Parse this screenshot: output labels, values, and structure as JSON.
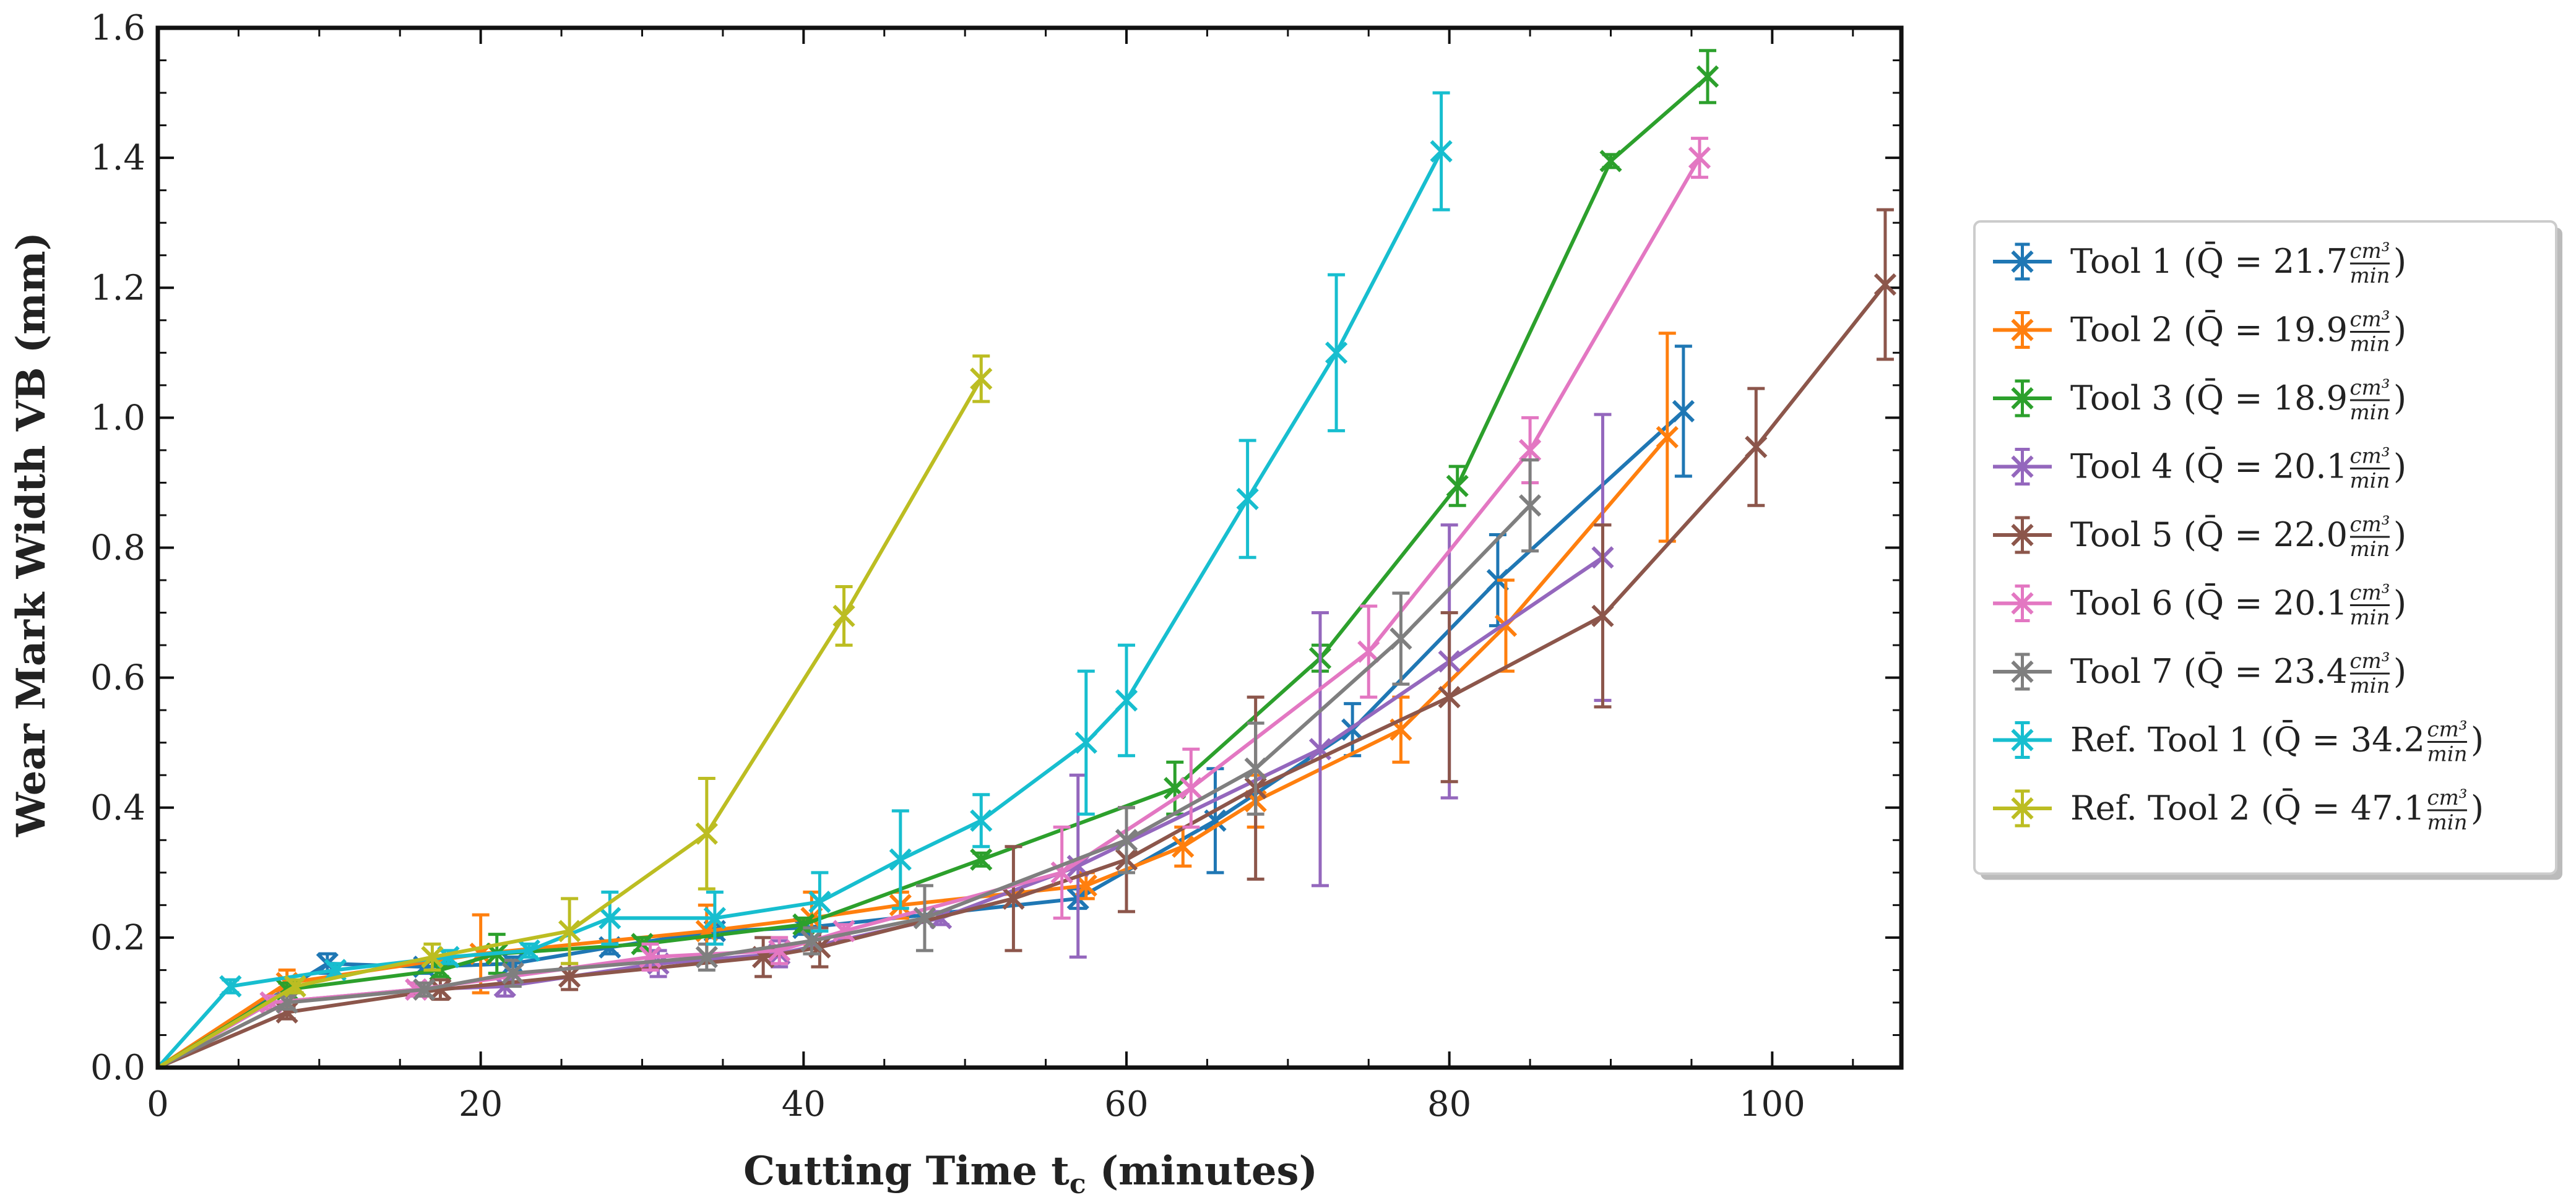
{
  "chart_data": {
    "type": "line",
    "title": "",
    "xlabel_main": "Cutting Time t",
    "xlabel_sub": "c",
    "xlabel_end": "(minutes)",
    "ylabel": "Wear Mark Width VB (mm)",
    "xlim": [
      0,
      108
    ],
    "ylim": [
      0,
      1.6
    ],
    "xticks": [
      0,
      20,
      40,
      60,
      80,
      100
    ],
    "xtick_labels": [
      "0",
      "20",
      "40",
      "60",
      "80",
      "100"
    ],
    "yticks": [
      0,
      0.2,
      0.4,
      0.6,
      0.8,
      1.0,
      1.2,
      1.4,
      1.6
    ],
    "ytick_labels": [
      "0.0",
      "0.2",
      "0.4",
      "0.6",
      "0.8",
      "1.0",
      "1.2",
      "1.4",
      "1.6"
    ],
    "legend_position": "right",
    "legend_unit_num": "cm³",
    "legend_unit_den": "min",
    "series": [
      {
        "name": "Tool 1",
        "label_main": "Tool 1 (Q̄ = 21.7",
        "color": "#1f77b4",
        "points": [
          [
            0,
            0,
            0
          ],
          [
            10.5,
            0.16,
            0.015
          ],
          [
            16.5,
            0.155,
            0.01
          ],
          [
            22,
            0.16,
            0.01
          ],
          [
            28,
            0.185,
            0.01
          ],
          [
            34.5,
            0.21,
            0.01
          ],
          [
            40,
            0.215,
            0.01
          ],
          [
            57,
            0.26,
            0.015
          ],
          [
            65.5,
            0.38,
            0.08
          ],
          [
            74,
            0.52,
            0.04
          ],
          [
            83,
            0.75,
            0.07
          ],
          [
            94.5,
            1.01,
            0.1
          ]
        ]
      },
      {
        "name": "Tool 2",
        "label_main": "Tool 2 (Q̄ = 19.9",
        "color": "#ff7f0e",
        "points": [
          [
            0,
            0,
            0
          ],
          [
            8,
            0.13,
            0.02
          ],
          [
            20,
            0.175,
            0.06
          ],
          [
            34,
            0.21,
            0.04
          ],
          [
            40.5,
            0.23,
            0.04
          ],
          [
            46,
            0.25,
            0.02
          ],
          [
            57.5,
            0.28,
            0.02
          ],
          [
            63.5,
            0.34,
            0.03
          ],
          [
            68,
            0.41,
            0.04
          ],
          [
            77,
            0.52,
            0.05
          ],
          [
            83.5,
            0.68,
            0.07
          ],
          [
            93.5,
            0.97,
            0.16
          ]
        ]
      },
      {
        "name": "Tool 3",
        "label_main": "Tool 3 (Q̄ = 18.9",
        "color": "#2ca02c",
        "points": [
          [
            0,
            0,
            0
          ],
          [
            8,
            0.12,
            0.01
          ],
          [
            17.5,
            0.15,
            0.01
          ],
          [
            21,
            0.175,
            0.03
          ],
          [
            30,
            0.19,
            0.01
          ],
          [
            40,
            0.22,
            0.01
          ],
          [
            51,
            0.32,
            0.01
          ],
          [
            63,
            0.43,
            0.04
          ],
          [
            72,
            0.63,
            0.02
          ],
          [
            80.5,
            0.895,
            0.03
          ],
          [
            90,
            1.395,
            0.01
          ],
          [
            96,
            1.525,
            0.04
          ]
        ]
      },
      {
        "name": "Tool 4",
        "label_main": "Tool 4 (Q̄ = 20.1",
        "color": "#9467bd",
        "points": [
          [
            0,
            0,
            0
          ],
          [
            7,
            0.1,
            0.01
          ],
          [
            16,
            0.12,
            0.01
          ],
          [
            21.5,
            0.125,
            0.015
          ],
          [
            31,
            0.16,
            0.02
          ],
          [
            38.5,
            0.175,
            0.02
          ],
          [
            48.5,
            0.23,
            0.01
          ],
          [
            57,
            0.31,
            0.14
          ],
          [
            72,
            0.49,
            0.21
          ],
          [
            80,
            0.625,
            0.21
          ],
          [
            89.5,
            0.785,
            0.22
          ]
        ]
      },
      {
        "name": "Tool 5",
        "label_main": "Tool 5 (Q̄ = 22.0",
        "color": "#8c564b",
        "points": [
          [
            0,
            0,
            0
          ],
          [
            8,
            0.085,
            0.01
          ],
          [
            17.5,
            0.12,
            0.015
          ],
          [
            25.5,
            0.14,
            0.02
          ],
          [
            37.5,
            0.17,
            0.03
          ],
          [
            41,
            0.185,
            0.03
          ],
          [
            53,
            0.26,
            0.08
          ],
          [
            60,
            0.32,
            0.08
          ],
          [
            68,
            0.43,
            0.14
          ],
          [
            80,
            0.57,
            0.13
          ],
          [
            89.5,
            0.695,
            0.14
          ],
          [
            99,
            0.955,
            0.09
          ],
          [
            107,
            1.205,
            0.115
          ]
        ]
      },
      {
        "name": "Tool 6",
        "label_main": "Tool 6 (Q̄ = 20.1",
        "color": "#e377c2",
        "points": [
          [
            0,
            0,
            0
          ],
          [
            7,
            0.1,
            0.01
          ],
          [
            16,
            0.12,
            0.01
          ],
          [
            30.5,
            0.17,
            0.02
          ],
          [
            38.5,
            0.18,
            0.02
          ],
          [
            42.5,
            0.21,
            0.01
          ],
          [
            56,
            0.3,
            0.07
          ],
          [
            64,
            0.43,
            0.06
          ],
          [
            75,
            0.64,
            0.07
          ],
          [
            85,
            0.95,
            0.05
          ],
          [
            95.5,
            1.4,
            0.03
          ]
        ]
      },
      {
        "name": "Tool 7",
        "label_main": "Tool 7 (Q̄ = 23.4",
        "color": "#7f7f7f",
        "points": [
          [
            0,
            0,
            0
          ],
          [
            8,
            0.1,
            0.01
          ],
          [
            16.5,
            0.12,
            0.01
          ],
          [
            22,
            0.145,
            0.02
          ],
          [
            34,
            0.17,
            0.02
          ],
          [
            40.5,
            0.195,
            0.02
          ],
          [
            47.5,
            0.23,
            0.05
          ],
          [
            60,
            0.35,
            0.05
          ],
          [
            68,
            0.46,
            0.07
          ],
          [
            77,
            0.66,
            0.07
          ],
          [
            85,
            0.865,
            0.07
          ]
        ]
      },
      {
        "name": "Ref. Tool 1",
        "label_main": "Ref. Tool 1 (Q̄ = 34.2",
        "color": "#17becf",
        "points": [
          [
            0,
            0,
            0
          ],
          [
            4.5,
            0.125,
            0.01
          ],
          [
            11,
            0.15,
            0.01
          ],
          [
            18,
            0.17,
            0.01
          ],
          [
            23,
            0.18,
            0.01
          ],
          [
            28,
            0.23,
            0.04
          ],
          [
            34.5,
            0.23,
            0.04
          ],
          [
            41,
            0.255,
            0.045
          ],
          [
            46,
            0.32,
            0.075
          ],
          [
            51,
            0.38,
            0.04
          ],
          [
            57.5,
            0.5,
            0.11
          ],
          [
            60,
            0.565,
            0.085
          ],
          [
            67.5,
            0.875,
            0.09
          ],
          [
            73,
            1.1,
            0.12
          ],
          [
            79.5,
            1.41,
            0.09
          ]
        ]
      },
      {
        "name": "Ref. Tool 2",
        "label_main": "Ref. Tool 2 (Q̄ = 47.1",
        "color": "#bcbd22",
        "points": [
          [
            0,
            0,
            0
          ],
          [
            8.5,
            0.125,
            0.01
          ],
          [
            17,
            0.17,
            0.02
          ],
          [
            25.5,
            0.21,
            0.05
          ],
          [
            34,
            0.36,
            0.085
          ],
          [
            42.5,
            0.695,
            0.045
          ],
          [
            51,
            1.06,
            0.035
          ]
        ]
      }
    ]
  }
}
